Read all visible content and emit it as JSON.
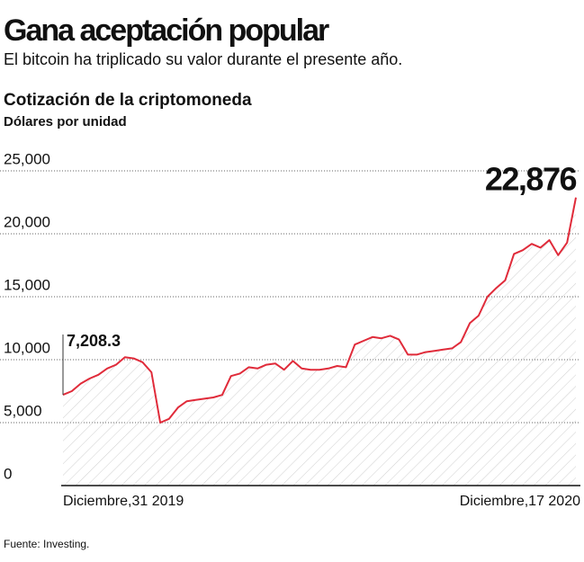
{
  "chart_data": {
    "type": "line",
    "title": "Gana aceptación popular",
    "subtitle": "El bitcoin ha triplicado su valor durante el presente año.",
    "chart_title": "Cotización de la criptomoneda",
    "units": "Dólares por unidad",
    "source": "Fuente: Investing.",
    "color": "#e02b3a",
    "grid": true,
    "ylim": [
      0,
      25000
    ],
    "yticks": [
      0,
      {
        "value": 5000,
        "label": "5,000"
      },
      {
        "value": 10000,
        "label": "10,000"
      },
      {
        "value": 15000,
        "label": "15,000"
      },
      {
        "value": 20000,
        "label": "20,000"
      },
      {
        "value": 25000,
        "label": "25,000"
      }
    ],
    "categories": [
      "Diciembre,31 2019",
      null,
      null,
      null,
      null,
      null,
      null,
      null,
      null,
      null,
      null,
      null,
      null,
      null,
      null,
      null,
      null,
      null,
      null,
      null,
      null,
      null,
      null,
      null,
      null,
      null,
      null,
      null,
      null,
      null,
      null,
      null,
      null,
      null,
      null,
      null,
      null,
      null,
      null,
      null,
      null,
      null,
      null,
      null,
      null,
      null,
      null,
      null,
      null,
      null,
      null,
      null,
      null,
      null,
      null,
      null,
      null,
      null,
      "Diciembre,17 2020"
    ],
    "values": [
      7208.3,
      7500,
      8100,
      8500,
      8800,
      9300,
      9600,
      10200,
      10100,
      9800,
      9000,
      5000,
      5300,
      6200,
      6700,
      6800,
      6900,
      7000,
      7200,
      8700,
      8900,
      9400,
      9300,
      9600,
      9700,
      9200,
      9900,
      9300,
      9200,
      9200,
      9300,
      9500,
      9400,
      11200,
      11500,
      11800,
      11700,
      11900,
      11600,
      10400,
      10400,
      10600,
      10700,
      10800,
      10900,
      11400,
      12900,
      13500,
      15000,
      15700,
      16300,
      18400,
      18700,
      19200,
      18900,
      19500,
      18300,
      19300,
      22876
    ],
    "value_labels": [
      "7,208.3",
      null,
      null,
      null,
      null,
      null,
      null,
      null,
      null,
      null,
      null,
      null,
      null,
      null,
      null,
      null,
      null,
      null,
      null,
      null,
      null,
      null,
      null,
      null,
      null,
      null,
      null,
      null,
      null,
      null,
      null,
      null,
      null,
      null,
      null,
      null,
      null,
      null,
      null,
      null,
      null,
      null,
      null,
      null,
      null,
      null,
      null,
      null,
      null,
      null,
      null,
      null,
      null,
      null,
      null,
      null,
      null,
      null,
      "22,876"
    ]
  }
}
